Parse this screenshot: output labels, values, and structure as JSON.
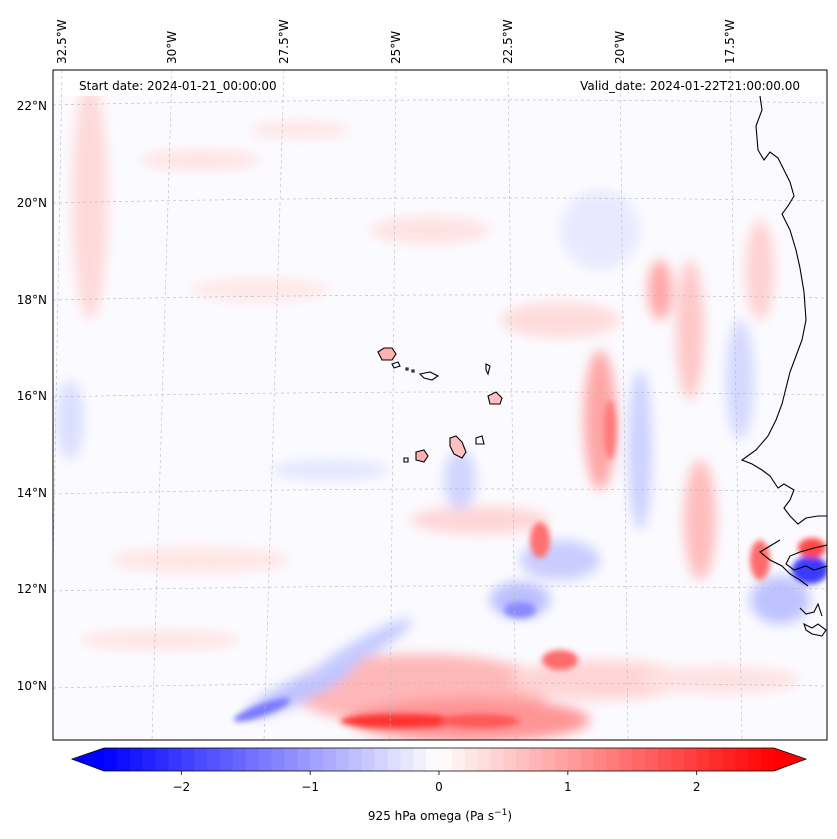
{
  "header": {
    "start_date": "Start date: 2024-01-21_00:00:00",
    "valid_date": "Valid_date: 2024-01-22T21:00:00.00"
  },
  "map": {
    "lon_labels": [
      "32.5°W",
      "30°W",
      "27.5°W",
      "25°W",
      "22.5°W",
      "20°W",
      "17.5°W"
    ],
    "lat_labels": [
      "22°N",
      "20°N",
      "18°N",
      "16°N",
      "14°N",
      "12°N",
      "10°N"
    ]
  },
  "colorbar": {
    "label": "925 hPa omega (Pa s",
    "label_superscript": "−1",
    "label_suffix": ")",
    "ticks": [
      "−2",
      "−1",
      "0",
      "1",
      "2"
    ],
    "range": [
      -2.6,
      2.6
    ],
    "colormap": "bwr",
    "low_color": "#0000ff",
    "mid_color": "#ffffff",
    "high_color": "#ff0000"
  }
}
